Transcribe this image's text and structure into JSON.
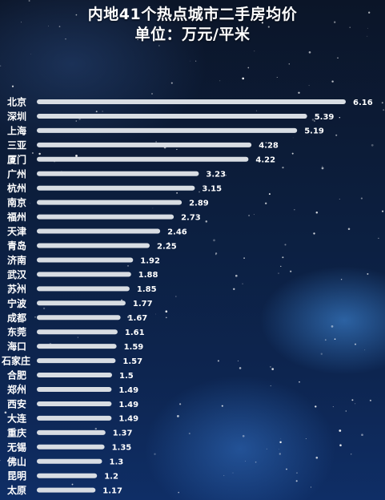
{
  "chart_data": {
    "type": "bar",
    "orientation": "horizontal",
    "title": "内地41个热点城市二手房均价",
    "subtitle": "单位：万元/平米",
    "categories": [
      "北京",
      "深圳",
      "上海",
      "三亚",
      "厦门",
      "广州",
      "杭州",
      "南京",
      "福州",
      "天津",
      "青岛",
      "济南",
      "武汉",
      "苏州",
      "宁波",
      "成都",
      "东莞",
      "海口",
      "石家庄",
      "合肥",
      "郑州",
      "西安",
      "大连",
      "重庆",
      "无锡",
      "佛山",
      "昆明",
      "太原"
    ],
    "values": [
      6.16,
      5.39,
      5.19,
      4.28,
      4.22,
      3.23,
      3.15,
      2.89,
      2.73,
      2.46,
      2.25,
      1.92,
      1.88,
      1.85,
      1.77,
      1.67,
      1.61,
      1.59,
      1.57,
      1.5,
      1.49,
      1.49,
      1.49,
      1.37,
      1.35,
      1.3,
      1.2,
      1.17
    ],
    "value_labels": [
      "6.16",
      "5.39",
      "5.19",
      "4.28",
      "4.22",
      "3.23",
      "3.15",
      "2.89",
      "2.73",
      "2.46",
      "2.25",
      "1.92",
      "1.88",
      "1.85",
      "1.77",
      "1.67",
      "1.61",
      "1.59",
      "1.57",
      "1.5",
      "1.49",
      "1.49",
      "1.49",
      "1.37",
      "1.35",
      "1.3",
      "1.2",
      "1.17"
    ],
    "xlabel": "",
    "ylabel": "",
    "grid": false,
    "legend": "none",
    "colors": {
      "bar": "#d8dde3",
      "bar_edge": "#ffffff",
      "text": "#ffffff",
      "background": "#0c1e3d"
    }
  }
}
